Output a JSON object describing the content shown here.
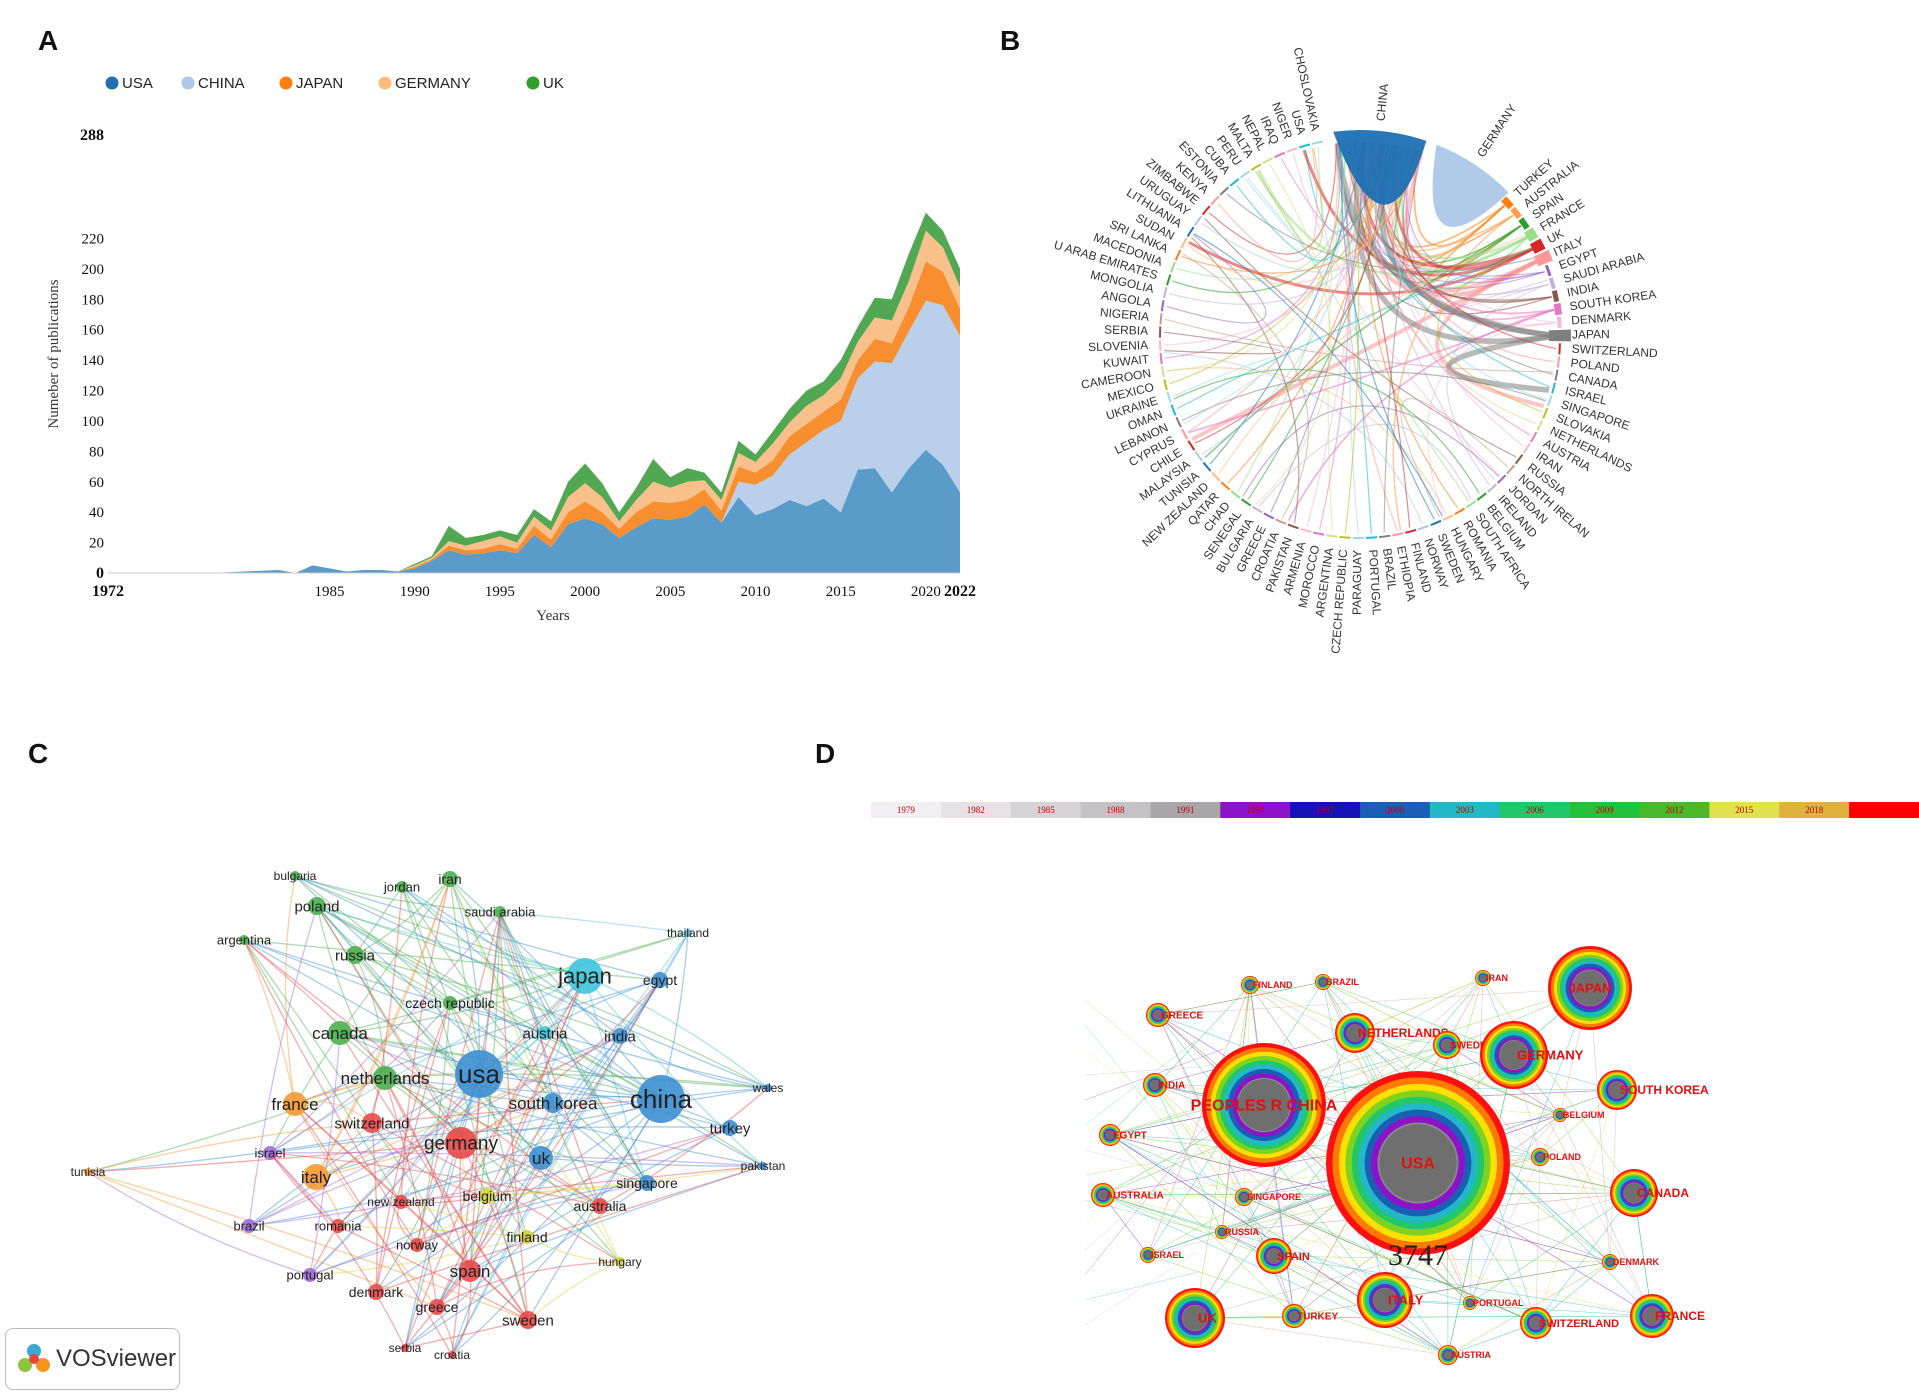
{
  "panels": {
    "a": "A",
    "b": "B",
    "c": "C",
    "d": "D"
  },
  "colors": {
    "usa": "#5b9bc9",
    "china": "#b9cfea",
    "japan": "#f78e2f",
    "germany": "#f9c08c",
    "uk": "#52a852"
  },
  "chart_data": [
    {
      "type": "area",
      "legend": [
        "USA",
        "CHINA",
        "JAPAN",
        "GERMANY",
        "UK"
      ],
      "ylabel": "Numeber of publications",
      "xlabel": "Years",
      "xlim": [
        1972,
        2022
      ],
      "ylim": [
        0,
        288
      ],
      "x_ticks": [
        "1972",
        "1985",
        "1990",
        "1995",
        "2000",
        "2005",
        "2010",
        "2015",
        "2020",
        "2022"
      ],
      "y_ticks": [
        "0",
        "20",
        "40",
        "60",
        "80",
        "100",
        "120",
        "140",
        "160",
        "180",
        "200",
        "220",
        "288"
      ],
      "x": [
        1972,
        1978,
        1980,
        1982,
        1983,
        1984,
        1985,
        1986,
        1987,
        1988,
        1989,
        1990,
        1991,
        1992,
        1993,
        1994,
        1995,
        1996,
        1997,
        1998,
        1999,
        2000,
        2001,
        2002,
        2003,
        2004,
        2005,
        2006,
        2007,
        2008,
        2009,
        2010,
        2011,
        2012,
        2013,
        2014,
        2015,
        2016,
        2017,
        2018,
        2019,
        2020,
        2021,
        2022
      ],
      "series": [
        {
          "name": "USA",
          "values": [
            0,
            0,
            1,
            2,
            0,
            5,
            3,
            1,
            2,
            2,
            1,
            3,
            8,
            15,
            12,
            13,
            15,
            13,
            25,
            17,
            32,
            36,
            32,
            23,
            30,
            36,
            35,
            37,
            45,
            33,
            50,
            38,
            42,
            48,
            44,
            49,
            40,
            68,
            69,
            53,
            69,
            81,
            71,
            53
          ]
        },
        {
          "name": "CHINA",
          "values": [
            0,
            0,
            0,
            0,
            0,
            0,
            0,
            0,
            0,
            0,
            0,
            0,
            0,
            0,
            0,
            0,
            0,
            0,
            0,
            0,
            0,
            0,
            0,
            0,
            0,
            0,
            0,
            0,
            0,
            0,
            10,
            20,
            22,
            30,
            42,
            45,
            60,
            60,
            70,
            85,
            90,
            98,
            105,
            103
          ]
        },
        {
          "name": "JAPAN",
          "values": [
            0,
            0,
            0,
            0,
            0,
            0,
            0,
            0,
            0,
            0,
            0,
            1,
            1,
            3,
            3,
            3,
            4,
            3,
            6,
            5,
            8,
            11,
            8,
            6,
            10,
            11,
            11,
            11,
            10,
            8,
            10,
            8,
            10,
            12,
            12,
            12,
            14,
            12,
            15,
            13,
            16,
            26,
            22,
            18
          ]
        },
        {
          "name": "GERMANY",
          "values": [
            0,
            0,
            0,
            0,
            0,
            0,
            0,
            0,
            0,
            0,
            0,
            1,
            1,
            3,
            3,
            5,
            5,
            4,
            6,
            6,
            10,
            12,
            10,
            5,
            8,
            13,
            10,
            12,
            6,
            7,
            9,
            7,
            11,
            9,
            12,
            11,
            14,
            12,
            14,
            15,
            17,
            20,
            16,
            14
          ]
        },
        {
          "name": "UK",
          "values": [
            0,
            0,
            0,
            0,
            0,
            0,
            0,
            0,
            0,
            0,
            0,
            1,
            1,
            10,
            5,
            4,
            4,
            5,
            5,
            6,
            10,
            13,
            9,
            6,
            8,
            15,
            7,
            9,
            5,
            5,
            8,
            5,
            8,
            9,
            10,
            9,
            12,
            10,
            13,
            14,
            18,
            12,
            11,
            12
          ]
        }
      ]
    },
    {
      "type": "chord",
      "labels": [
        "USA",
        "CHOSLOVAKIA",
        "CHINA",
        "GERMANY",
        "TURKEY",
        "AUSTRALIA",
        "SPAIN",
        "FRANCE",
        "UK",
        "ITALY",
        "EGYPT",
        "SAUDI ARABIA",
        "INDIA",
        "SOUTH KOREA",
        "DENMARK",
        "JAPAN",
        "SWITZERLAND",
        "POLAND",
        "CANADA",
        "ISRAEL",
        "SINGAPORE",
        "SLOVAKIA",
        "NETHERLANDS",
        "AUSTRIA",
        "IRAN",
        "RUSSIA",
        "NORTH IRELAN",
        "JORDAN",
        "IRELAND",
        "BELGIUM",
        "SOUTH AFRICA",
        "ROMANIA",
        "HUNGARY",
        "SWEDEN",
        "NORWAY",
        "FINLAND",
        "ETHIOPIA",
        "BRAZIL",
        "PORTUGAL",
        "PARAGUAY",
        "CZECH REPUBLIC",
        "ARGENTINA",
        "MOROCCO",
        "ARMENIA",
        "PAKISTAN",
        "CROATIA",
        "GREECE",
        "BULGARIA",
        "SENEGAL",
        "CHAD",
        "QATAR",
        "NEW ZEALAND",
        "TUNISIA",
        "MALAYSIA",
        "CHILE",
        "CYPRUS",
        "LEBANON",
        "OMAN",
        "UKRAINE",
        "MEXICO",
        "CAMEROON",
        "KUWAIT",
        "SLOVENIA",
        "SERBIA",
        "NIGERIA",
        "ANGOLA",
        "MONGOLIA",
        "U ARAB EMIRATES",
        "MACEDONIA",
        "SRI LANKA",
        "SUDAN",
        "LITHUANIA",
        "URUGUAY",
        "ZIMBABWE",
        "KENYA",
        "ESTONIA",
        "CUBA",
        "PERU",
        "MALTA",
        "NEPAL",
        "IRAQ",
        "NIGER"
      ]
    },
    {
      "type": "network",
      "nodes": [
        "bulgaria",
        "jordan",
        "iran",
        "poland",
        "saudi arabia",
        "argentina",
        "russia",
        "thailand",
        "japan",
        "egypt",
        "czech republic",
        "canada",
        "austria",
        "india",
        "usa",
        "netherlands",
        "china",
        "wales",
        "france",
        "south korea",
        "switzerland",
        "turkey",
        "germany",
        "israel",
        "italy",
        "uk",
        "pakistan",
        "tunisia",
        "singapore",
        "belgium",
        "new zealand",
        "australia",
        "brazil",
        "romania",
        "finland",
        "norway",
        "hungary",
        "portugal",
        "spain",
        "denmark",
        "greece",
        "sweden",
        "serbia",
        "croatia"
      ],
      "watermark": "VOSviewer"
    },
    {
      "type": "network",
      "timeline": [
        "1979",
        "1982",
        "1985",
        "1988",
        "1991",
        "1994",
        "1997",
        "2000",
        "2003",
        "2006",
        "2009",
        "2012",
        "2015",
        "2018"
      ],
      "nodes": [
        "JAPAN",
        "FINLAND",
        "BRAZIL",
        "IRAN",
        "GREECE",
        "NETHERLANDS",
        "SWEDEN",
        "GERMANY",
        "INDIA",
        "PEOPLES R CHINA",
        "SOUTH KOREA",
        "BELGIUM",
        "EGYPT",
        "USA",
        "POLAND",
        "AUSTRALIA",
        "SINGAPORE",
        "CANADA",
        "RUSSIA",
        "ISRAEL",
        "SPAIN",
        "DENMARK",
        "ITALY",
        "PORTUGAL",
        "UK",
        "TURKEY",
        "SWITZERLAND",
        "FRANCE",
        "AUSTRIA"
      ],
      "center_count": "3747"
    }
  ]
}
